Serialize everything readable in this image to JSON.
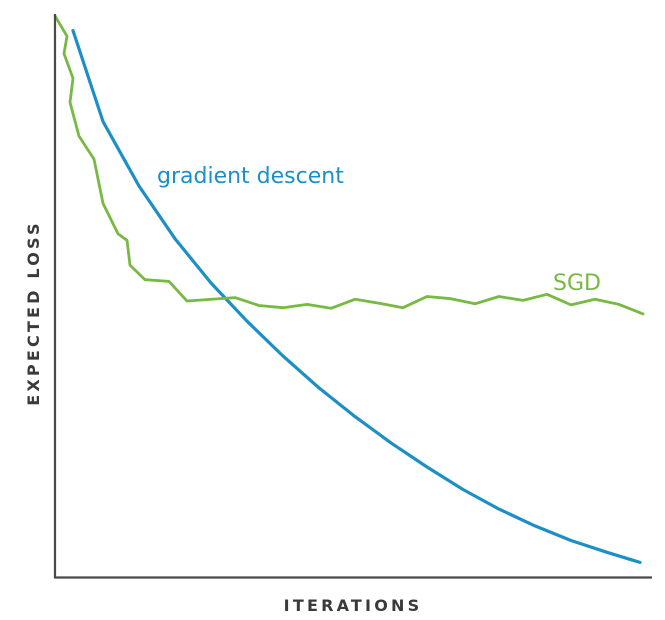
{
  "chart_data": {
    "type": "line",
    "title": "",
    "xlabel": "ITERATIONS",
    "ylabel": "EXPECTED LOSS",
    "xlim": [
      0,
      100
    ],
    "ylim": [
      0,
      100
    ],
    "grid": false,
    "legend": "inline labels",
    "series": [
      {
        "name": "gradient descent",
        "color": "#1b8fc6",
        "x": [
          3,
          8,
          14,
          20,
          26,
          32,
          38,
          44,
          50,
          56,
          62,
          68,
          74,
          80,
          86,
          92,
          97.5
        ],
        "y": [
          97.4,
          81.2,
          69.7,
          60.3,
          52.4,
          45.6,
          39.4,
          33.7,
          28.6,
          23.9,
          19.6,
          15.6,
          12.1,
          9.1,
          6.5,
          4.4,
          2.6
        ]
      },
      {
        "name": "SGD",
        "color": "#77b943",
        "x": [
          0,
          2,
          1.5,
          3,
          2.5,
          4,
          6.5,
          8,
          10.5,
          12,
          12.5,
          15,
          19,
          22,
          30,
          34,
          38,
          42,
          46,
          50,
          54,
          58,
          62,
          66,
          70,
          74,
          78,
          82,
          86,
          90,
          94,
          98
        ],
        "y": [
          100,
          96.4,
          93.3,
          88.9,
          84.6,
          78.6,
          74.5,
          66.6,
          61.2,
          60.0,
          55.6,
          53.0,
          52.7,
          49.2,
          49.8,
          48.4,
          48.0,
          48.6,
          47.9,
          49.5,
          48.8,
          48.0,
          50.0,
          49.6,
          48.7,
          50.0,
          49.3,
          50.4,
          48.5,
          49.5,
          48.6,
          46.9
        ]
      }
    ]
  }
}
